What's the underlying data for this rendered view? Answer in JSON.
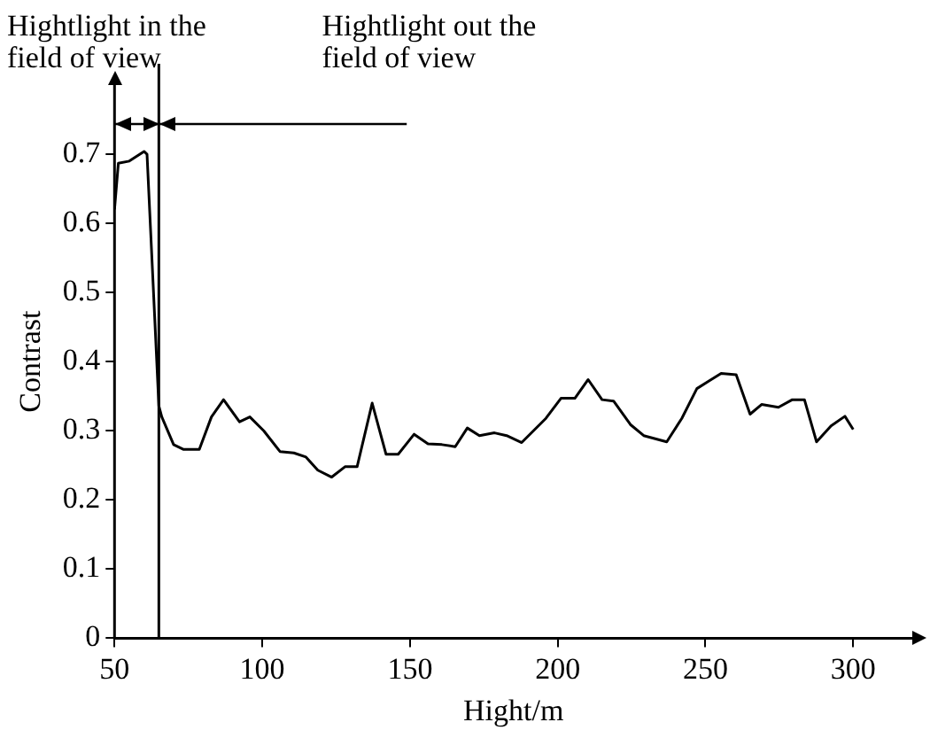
{
  "chart_data": {
    "type": "line",
    "xlabel": "Hight/m",
    "ylabel": "Contrast",
    "xlim": [
      50,
      320
    ],
    "xticks": [
      50,
      100,
      150,
      200,
      250,
      300
    ],
    "ylim": [
      0,
      0.8
    ],
    "yticks": [
      0,
      0.1,
      0.2,
      0.3,
      0.4,
      0.5,
      0.6,
      0.7
    ],
    "grid": false,
    "legend": false,
    "marker": "none",
    "line_style": "solid",
    "series": [
      {
        "color": "#000000",
        "x": [
          50,
          51.3,
          55,
          60,
          61,
          65,
          66,
          70,
          73.4,
          78.7,
          82.8,
          86.9,
          92.3,
          95.8,
          100.5,
          106,
          110.7,
          114.8,
          118.8,
          123.5,
          128,
          132.1,
          137.2,
          141.9,
          146,
          151.4,
          156.1,
          160.8,
          165.3,
          169.4,
          173.5,
          178.6,
          182.7,
          187.8,
          196,
          201.1,
          205.8,
          210.3,
          215,
          218.9,
          224.6,
          229.1,
          236.9,
          242,
          247.1,
          251.2,
          255.3,
          260.4,
          265.1,
          269,
          274.7,
          279.4,
          283.5,
          287.6,
          292.5,
          297.2,
          300
        ],
        "values": [
          0.62,
          0.687,
          0.69,
          0.704,
          0.7,
          0.336,
          0.32,
          0.28,
          0.273,
          0.273,
          0.32,
          0.345,
          0.313,
          0.32,
          0.3,
          0.27,
          0.268,
          0.262,
          0.243,
          0.233,
          0.248,
          0.248,
          0.34,
          0.266,
          0.266,
          0.295,
          0.281,
          0.28,
          0.277,
          0.304,
          0.293,
          0.297,
          0.293,
          0.283,
          0.318,
          0.347,
          0.347,
          0.374,
          0.345,
          0.343,
          0.309,
          0.293,
          0.284,
          0.318,
          0.361,
          0.372,
          0.383,
          0.381,
          0.324,
          0.338,
          0.334,
          0.345,
          0.345,
          0.284,
          0.307,
          0.321,
          0.302
        ]
      }
    ],
    "ref_lines": [
      {
        "axis": "x",
        "value": 65,
        "label": null,
        "color": "#000000"
      }
    ],
    "annotations": [
      "Hightlight in the field of view",
      "Hightlight out the field of view"
    ]
  }
}
